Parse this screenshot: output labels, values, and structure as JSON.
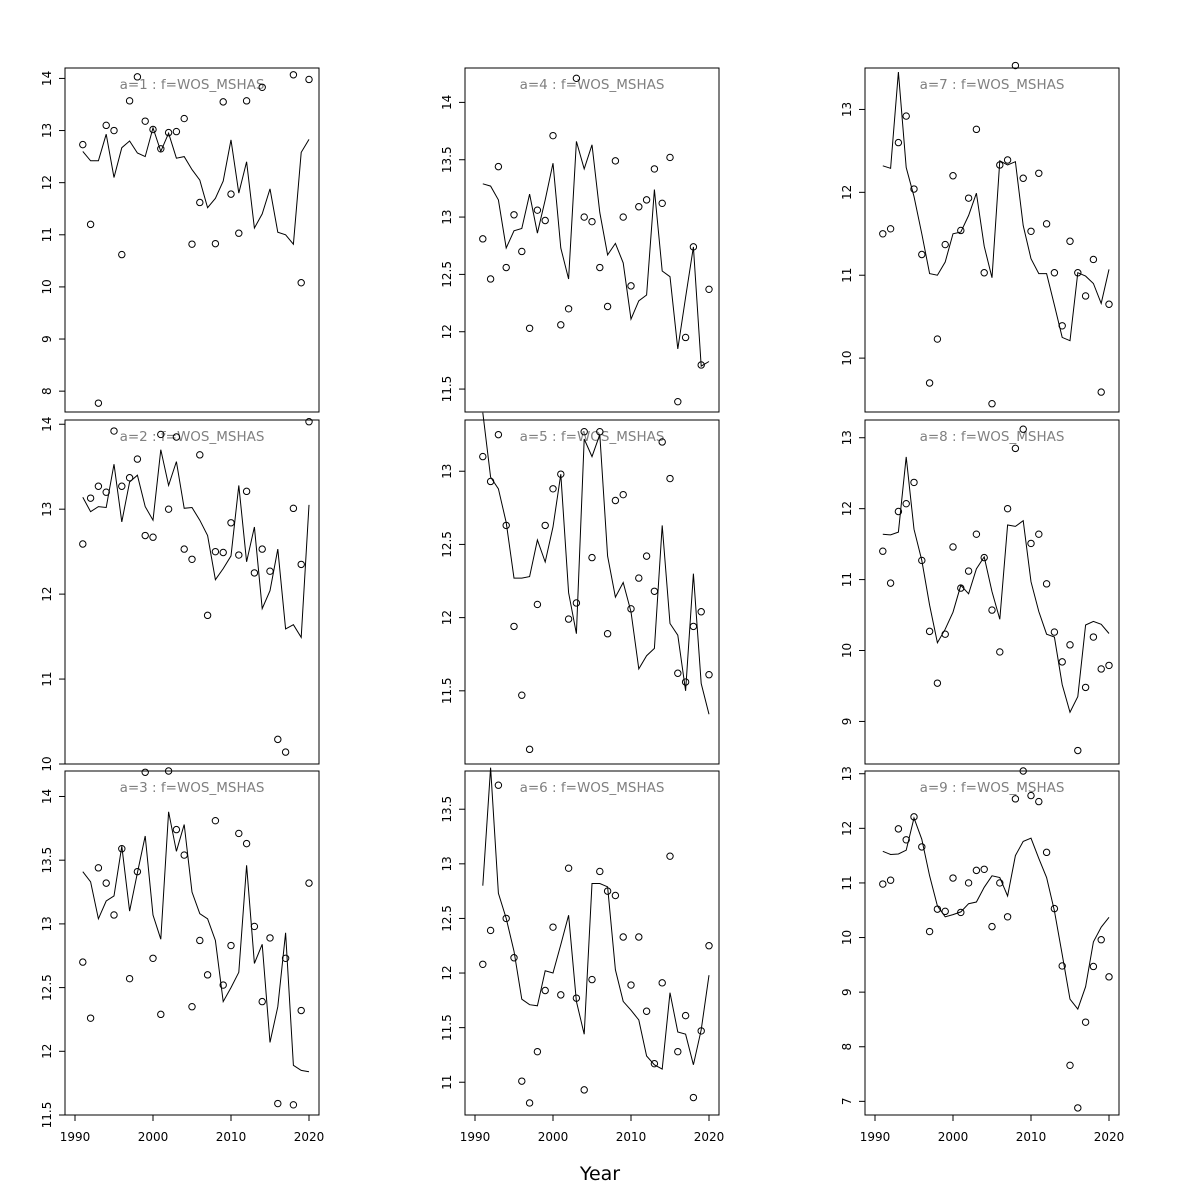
{
  "figure": {
    "xlabel": "Year"
  },
  "chart_data": [
    {
      "type": "scatter",
      "title": "a=1  :  f=WOS_MSHAS",
      "xlim": [
        1990,
        2020
      ],
      "ylim": [
        7.6,
        14.2
      ],
      "yticks": [
        8,
        9,
        10,
        11,
        12,
        13,
        14
      ],
      "xticks": [],
      "x": [
        1991,
        1992,
        1993,
        1994,
        1995,
        1996,
        1997,
        1998,
        1999,
        2000,
        2001,
        2002,
        2003,
        2004,
        2005,
        2006,
        2007,
        2008,
        2009,
        2010,
        2011,
        2012,
        2013,
        2014,
        2015,
        2016,
        2017,
        2018,
        2019,
        2020
      ],
      "points": [
        12.73,
        11.2,
        7.77,
        13.1,
        13.0,
        10.62,
        13.57,
        14.03,
        13.18,
        13.02,
        12.65,
        12.96,
        12.98,
        13.23,
        10.82,
        11.62,
        null,
        10.83,
        13.55,
        11.78,
        11.03,
        13.57,
        null,
        13.83,
        null,
        null,
        null,
        14.07,
        10.08,
        13.98
      ],
      "line": [
        12.6,
        12.42,
        12.42,
        12.93,
        12.1,
        12.67,
        12.8,
        12.57,
        12.5,
        13.05,
        12.6,
        12.95,
        12.47,
        12.5,
        12.25,
        12.05,
        11.52,
        11.7,
        12.03,
        12.82,
        11.8,
        12.4,
        11.13,
        11.4,
        11.88,
        11.05,
        11.0,
        10.82,
        12.58,
        12.83
      ]
    },
    {
      "type": "scatter",
      "title": "a=4  :  f=WOS_MSHAS",
      "xlim": [
        1990,
        2020
      ],
      "ylim": [
        11.3,
        14.3
      ],
      "yticks": [
        11.5,
        12.0,
        12.5,
        13.0,
        13.5,
        14.0
      ],
      "xticks": [],
      "x": [
        1991,
        1992,
        1993,
        1994,
        1995,
        1996,
        1997,
        1998,
        1999,
        2000,
        2001,
        2002,
        2003,
        2004,
        2005,
        2006,
        2007,
        2008,
        2009,
        2010,
        2011,
        2012,
        2013,
        2014,
        2015,
        2016,
        2017,
        2018,
        2019,
        2020
      ],
      "points": [
        12.81,
        12.46,
        13.44,
        12.56,
        13.02,
        12.7,
        12.03,
        13.06,
        12.97,
        13.71,
        12.06,
        12.2,
        14.21,
        13.0,
        12.96,
        12.56,
        12.22,
        13.49,
        13.0,
        12.4,
        13.09,
        13.15,
        13.42,
        13.12,
        13.52,
        11.39,
        11.95,
        12.74,
        11.71,
        12.37
      ],
      "line": [
        13.29,
        13.27,
        13.15,
        12.73,
        12.88,
        12.9,
        13.2,
        12.86,
        13.15,
        13.47,
        12.73,
        12.46,
        13.66,
        13.42,
        13.63,
        13.04,
        12.67,
        12.77,
        12.6,
        12.11,
        12.27,
        12.32,
        13.24,
        12.53,
        12.48,
        11.85,
        12.3,
        12.74,
        11.7,
        11.74
      ]
    },
    {
      "type": "scatter",
      "title": "a=7  :  f=WOS_MSHAS",
      "xlim": [
        1990,
        2020
      ],
      "ylim": [
        9.35,
        13.5
      ],
      "yticks": [
        10,
        11,
        12,
        13
      ],
      "xticks": [],
      "x": [
        1991,
        1992,
        1993,
        1994,
        1995,
        1996,
        1997,
        1998,
        1999,
        2000,
        2001,
        2002,
        2003,
        2004,
        2005,
        2006,
        2007,
        2008,
        2009,
        2010,
        2011,
        2012,
        2013,
        2014,
        2015,
        2016,
        2017,
        2018,
        2019,
        2020
      ],
      "points": [
        11.5,
        11.56,
        12.6,
        12.92,
        12.04,
        11.25,
        9.7,
        10.23,
        11.37,
        12.2,
        11.54,
        11.93,
        12.76,
        11.03,
        9.45,
        12.33,
        12.39,
        13.53,
        12.17,
        11.53,
        12.23,
        11.62,
        11.03,
        10.39,
        11.41,
        11.03,
        10.75,
        11.19,
        9.59,
        10.65
      ],
      "line": [
        12.32,
        12.29,
        13.45,
        12.3,
        11.95,
        11.5,
        11.02,
        11.0,
        11.16,
        11.5,
        11.52,
        11.72,
        11.99,
        11.35,
        10.97,
        12.38,
        12.33,
        12.37,
        11.6,
        11.2,
        11.02,
        11.02,
        10.64,
        10.25,
        10.21,
        11.03,
        10.99,
        10.9,
        10.66,
        11.07
      ]
    },
    {
      "type": "scatter",
      "title": "a=2  :  f=WOS_MSHAS",
      "xlim": [
        1990,
        2020
      ],
      "ylim": [
        10.0,
        14.05
      ],
      "yticks": [
        10,
        11,
        12,
        13,
        14
      ],
      "xticks": [],
      "x": [
        1991,
        1992,
        1993,
        1994,
        1995,
        1996,
        1997,
        1998,
        1999,
        2000,
        2001,
        2002,
        2003,
        2004,
        2005,
        2006,
        2007,
        2008,
        2009,
        2010,
        2011,
        2012,
        2013,
        2014,
        2015,
        2016,
        2017,
        2018,
        2019,
        2020
      ],
      "points": [
        12.59,
        13.13,
        13.27,
        13.2,
        13.92,
        13.27,
        13.37,
        13.59,
        12.69,
        12.67,
        13.88,
        13.0,
        13.85,
        12.53,
        12.41,
        13.64,
        11.75,
        12.5,
        12.49,
        12.84,
        12.46,
        13.21,
        12.25,
        12.53,
        12.27,
        10.29,
        10.14,
        13.01,
        12.35,
        14.03
      ],
      "line": [
        13.14,
        12.97,
        13.03,
        13.02,
        13.53,
        12.85,
        13.32,
        13.4,
        13.03,
        12.87,
        13.7,
        13.28,
        13.56,
        13.01,
        13.02,
        12.87,
        12.69,
        12.17,
        12.3,
        12.45,
        13.28,
        12.38,
        12.79,
        11.83,
        12.04,
        12.53,
        11.59,
        11.64,
        11.49,
        13.05
      ]
    },
    {
      "type": "scatter",
      "title": "a=5  :  f=WOS_MSHAS",
      "xlim": [
        1990,
        2020
      ],
      "ylim": [
        11.0,
        13.35
      ],
      "yticks": [
        11.5,
        12.0,
        12.5,
        13.0
      ],
      "xticks": [],
      "x": [
        1991,
        1992,
        1993,
        1994,
        1995,
        1996,
        1997,
        1998,
        1999,
        2000,
        2001,
        2002,
        2003,
        2004,
        2005,
        2006,
        2007,
        2008,
        2009,
        2010,
        2011,
        2012,
        2013,
        2014,
        2015,
        2016,
        2017,
        2018,
        2019,
        2020
      ],
      "points": [
        13.1,
        12.93,
        13.25,
        12.63,
        11.94,
        11.47,
        11.1,
        12.09,
        12.63,
        12.88,
        12.98,
        11.99,
        12.1,
        13.27,
        12.41,
        13.27,
        11.89,
        12.8,
        12.84,
        12.06,
        12.27,
        12.42,
        12.18,
        13.2,
        12.95,
        11.62,
        11.56,
        11.94,
        12.04,
        11.61
      ],
      "line": [
        13.4,
        12.96,
        12.88,
        12.65,
        12.27,
        12.27,
        12.28,
        12.53,
        12.38,
        12.62,
        12.98,
        12.17,
        11.89,
        13.22,
        13.1,
        13.25,
        12.42,
        12.14,
        12.24,
        12.04,
        11.65,
        11.74,
        11.79,
        12.63,
        11.96,
        11.88,
        11.5,
        12.3,
        11.55,
        11.34
      ]
    },
    {
      "type": "scatter",
      "title": "a=8  :  f=WOS_MSHAS",
      "xlim": [
        1990,
        2020
      ],
      "ylim": [
        8.4,
        13.25
      ],
      "yticks": [
        9,
        10,
        11,
        12,
        13
      ],
      "xticks": [],
      "x": [
        1991,
        1992,
        1993,
        1994,
        1995,
        1996,
        1997,
        1998,
        1999,
        2000,
        2001,
        2002,
        2003,
        2004,
        2005,
        2006,
        2007,
        2008,
        2009,
        2010,
        2011,
        2012,
        2013,
        2014,
        2015,
        2016,
        2017,
        2018,
        2019,
        2020
      ],
      "points": [
        11.4,
        10.95,
        11.96,
        12.07,
        12.37,
        11.27,
        10.27,
        9.54,
        10.23,
        11.46,
        10.88,
        11.12,
        11.64,
        11.31,
        10.57,
        9.98,
        12.0,
        12.85,
        13.12,
        11.51,
        11.64,
        10.94,
        10.26,
        9.84,
        10.08,
        8.59,
        9.48,
        10.19,
        9.74,
        9.79
      ],
      "line": [
        11.64,
        11.63,
        11.67,
        12.73,
        11.71,
        11.27,
        10.64,
        10.11,
        10.3,
        10.54,
        10.92,
        10.8,
        11.15,
        11.32,
        10.83,
        10.44,
        11.77,
        11.75,
        11.83,
        10.97,
        10.55,
        10.23,
        10.19,
        9.52,
        9.13,
        9.35,
        10.36,
        10.41,
        10.37,
        10.24
      ]
    },
    {
      "type": "scatter",
      "title": "a=3  :  f=WOS_MSHAS",
      "xlim": [
        1990,
        2020
      ],
      "ylim": [
        11.5,
        14.2
      ],
      "yticks": [
        11.5,
        12.0,
        12.5,
        13.0,
        13.5,
        14.0
      ],
      "xticks": [
        1990,
        2000,
        2010,
        2020
      ],
      "x": [
        1991,
        1992,
        1993,
        1994,
        1995,
        1996,
        1997,
        1998,
        1999,
        2000,
        2001,
        2002,
        2003,
        2004,
        2005,
        2006,
        2007,
        2008,
        2009,
        2010,
        2011,
        2012,
        2013,
        2014,
        2015,
        2016,
        2017,
        2018,
        2019,
        2020
      ],
      "points": [
        12.7,
        12.26,
        13.44,
        13.32,
        13.07,
        13.59,
        12.57,
        13.41,
        14.19,
        12.73,
        12.29,
        14.2,
        13.74,
        13.54,
        12.35,
        12.87,
        12.6,
        13.81,
        12.52,
        12.83,
        13.71,
        13.63,
        12.98,
        12.39,
        12.89,
        11.59,
        12.73,
        11.58,
        12.32,
        13.32
      ],
      "line": [
        13.41,
        13.33,
        13.04,
        13.18,
        13.22,
        13.61,
        13.1,
        13.4,
        13.69,
        13.07,
        12.88,
        13.88,
        13.57,
        13.78,
        13.25,
        13.08,
        13.04,
        12.87,
        12.39,
        12.5,
        12.62,
        13.46,
        12.69,
        12.84,
        12.07,
        12.35,
        12.93,
        11.89,
        11.85,
        11.84
      ]
    },
    {
      "type": "scatter",
      "title": "a=6  :  f=WOS_MSHAS",
      "xlim": [
        1990,
        2020
      ],
      "ylim": [
        10.7,
        13.85
      ],
      "yticks": [
        11.0,
        11.5,
        12.0,
        12.5,
        13.0,
        13.5
      ],
      "xticks": [
        1990,
        2000,
        2010,
        2020
      ],
      "x": [
        1991,
        1992,
        1993,
        1994,
        1995,
        1996,
        1997,
        1998,
        1999,
        2000,
        2001,
        2002,
        2003,
        2004,
        2005,
        2006,
        2007,
        2008,
        2009,
        2010,
        2011,
        2012,
        2013,
        2014,
        2015,
        2016,
        2017,
        2018,
        2019,
        2020
      ],
      "points": [
        12.08,
        12.39,
        13.72,
        12.5,
        12.14,
        11.01,
        10.81,
        11.28,
        11.84,
        12.42,
        11.8,
        12.96,
        11.77,
        10.93,
        11.94,
        12.93,
        12.75,
        12.71,
        12.33,
        11.89,
        12.33,
        11.65,
        11.17,
        11.91,
        13.07,
        11.28,
        11.61,
        10.86,
        11.47,
        12.25
      ],
      "line": [
        12.8,
        13.88,
        12.73,
        12.5,
        12.2,
        11.76,
        11.71,
        11.7,
        12.02,
        12.0,
        12.26,
        12.53,
        11.74,
        11.44,
        12.82,
        12.82,
        12.79,
        12.03,
        11.74,
        11.66,
        11.57,
        11.24,
        11.16,
        11.12,
        11.82,
        11.46,
        11.44,
        11.16,
        11.48,
        11.98
      ]
    },
    {
      "type": "scatter",
      "title": "a=9  :  f=WOS_MSHAS",
      "xlim": [
        1990,
        2020
      ],
      "ylim": [
        6.75,
        13.05
      ],
      "yticks": [
        7,
        8,
        9,
        10,
        11,
        12,
        13
      ],
      "xticks": [
        1990,
        2000,
        2010,
        2020
      ],
      "x": [
        1991,
        1992,
        1993,
        1994,
        1995,
        1996,
        1997,
        1998,
        1999,
        2000,
        2001,
        2002,
        2003,
        2004,
        2005,
        2006,
        2007,
        2008,
        2009,
        2010,
        2011,
        2012,
        2013,
        2014,
        2015,
        2016,
        2017,
        2018,
        2019,
        2020
      ],
      "points": [
        10.98,
        11.05,
        11.99,
        11.79,
        12.21,
        11.66,
        10.11,
        10.52,
        10.48,
        11.09,
        10.46,
        11.0,
        11.23,
        11.25,
        10.2,
        11.0,
        10.38,
        12.54,
        13.05,
        12.6,
        12.49,
        11.56,
        10.53,
        9.48,
        7.66,
        6.88,
        8.45,
        9.47,
        9.96,
        9.28
      ],
      "line": [
        11.58,
        11.52,
        11.53,
        11.6,
        12.19,
        11.8,
        11.13,
        10.58,
        10.38,
        10.42,
        10.47,
        10.62,
        10.65,
        10.92,
        11.13,
        11.1,
        10.76,
        11.5,
        11.76,
        11.82,
        11.45,
        11.1,
        10.49,
        9.69,
        8.87,
        8.69,
        9.1,
        9.92,
        10.19,
        10.37
      ]
    }
  ]
}
